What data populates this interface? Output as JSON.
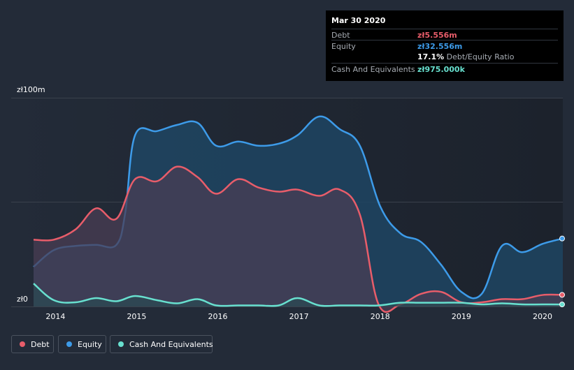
{
  "chart_data": {
    "type": "area",
    "title": "",
    "currency_prefix": "zł",
    "y_unit_label_top": "zł100m",
    "y_unit_label_bottom": "zł0",
    "ylim": [
      0,
      100
    ],
    "xlim": [
      2013.73,
      2020.25
    ],
    "x_ticks": [
      "2014",
      "2015",
      "2016",
      "2017",
      "2018",
      "2019",
      "2020"
    ],
    "x_tick_values": [
      2014,
      2015,
      2016,
      2017,
      2018,
      2019,
      2020
    ],
    "grid": true,
    "legend_position": "bottom-left",
    "series": [
      {
        "name": "Equity",
        "key": "equity",
        "color": "#3d9be9",
        "fill": "#1f4563",
        "x": [
          2013.73,
          2013.98,
          2014.25,
          2014.5,
          2014.75,
          2014.86,
          2014.98,
          2015.25,
          2015.5,
          2015.75,
          2015.98,
          2016.25,
          2016.5,
          2016.75,
          2016.98,
          2017.25,
          2017.5,
          2017.75,
          2018.0,
          2018.25,
          2018.5,
          2018.75,
          2019.0,
          2019.25,
          2019.5,
          2019.75,
          2020.0,
          2020.25
        ],
        "values": [
          19,
          27,
          29,
          29.5,
          29.5,
          45,
          82,
          84,
          87,
          88,
          77,
          79,
          77,
          78,
          82,
          91,
          85,
          77,
          48,
          35,
          31,
          20,
          7,
          6,
          29,
          26,
          30,
          32.556
        ]
      },
      {
        "name": "Debt",
        "key": "debt",
        "color": "#e85d6a",
        "fill": "#4a3d54",
        "x": [
          2013.73,
          2013.98,
          2014.25,
          2014.5,
          2014.75,
          2014.98,
          2015.25,
          2015.5,
          2015.75,
          2015.98,
          2016.25,
          2016.5,
          2016.75,
          2016.98,
          2017.25,
          2017.5,
          2017.75,
          2017.98,
          2018.25,
          2018.5,
          2018.75,
          2019.0,
          2019.25,
          2019.5,
          2019.75,
          2020.0,
          2020.25
        ],
        "values": [
          32,
          32,
          37,
          47,
          42,
          61,
          60,
          67,
          62,
          54,
          61,
          57,
          55,
          56,
          53,
          56,
          44,
          1,
          1,
          6,
          7,
          2,
          2,
          3.5,
          3.5,
          5.5,
          5.556
        ]
      },
      {
        "name": "Cash And Equivalents",
        "key": "cash",
        "color": "#68e0cf",
        "fill": "#2b4a53",
        "x": [
          2013.73,
          2013.98,
          2014.25,
          2014.5,
          2014.75,
          2014.98,
          2015.25,
          2015.5,
          2015.75,
          2015.98,
          2016.25,
          2016.5,
          2016.75,
          2016.98,
          2017.25,
          2017.5,
          2017.75,
          2017.98,
          2018.25,
          2018.5,
          2018.75,
          2019.0,
          2019.25,
          2019.5,
          2019.75,
          2020.0,
          2020.25
        ],
        "values": [
          11,
          3,
          2,
          4,
          2.5,
          5,
          3,
          1.5,
          3.5,
          0.5,
          0.5,
          0.5,
          0.5,
          4,
          0.5,
          0.5,
          0.5,
          0.5,
          1.8,
          1.8,
          1.8,
          1.8,
          1,
          1.5,
          1,
          1,
          0.975
        ]
      }
    ],
    "tooltip": {
      "date": "Mar 30 2020",
      "rows": [
        {
          "label": "Debt",
          "value": "zł5.556m"
        },
        {
          "label": "Equity",
          "value": "zł32.556m"
        },
        {
          "ratio_value": "17.1%",
          "ratio_label": "Debt/Equity Ratio"
        },
        {
          "label": "Cash And Equivalents",
          "value": "zł975.000k"
        }
      ]
    },
    "legend": [
      {
        "label": "Debt",
        "color": "#e85d6a"
      },
      {
        "label": "Equity",
        "color": "#3d9be9"
      },
      {
        "label": "Cash And Equivalents",
        "color": "#68e0cf"
      }
    ]
  }
}
